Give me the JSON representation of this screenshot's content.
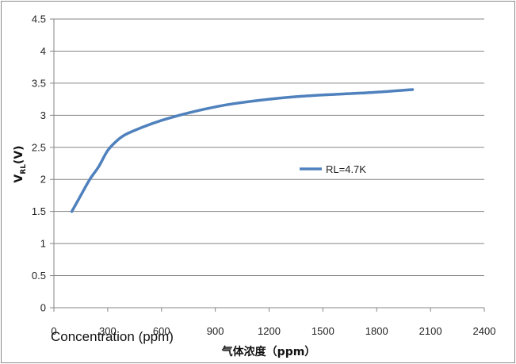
{
  "chart_data": {
    "type": "line",
    "title": "",
    "xlabel": "气体浓度（ppm）",
    "ylabel": "VRL(V)",
    "ylabel_main": "V",
    "ylabel_sub": "RL",
    "ylabel_tail": "(V)",
    "overlay_text": "Concentration (ppm)",
    "xlim": [
      0,
      2400
    ],
    "ylim": [
      0,
      4.5
    ],
    "x_ticks": [
      0,
      300,
      600,
      900,
      1200,
      1500,
      1800,
      2100,
      2400
    ],
    "x_tick_labels": [
      "0",
      "300",
      "600",
      "900",
      "1200",
      "1500",
      "1800",
      "2100",
      "2400"
    ],
    "y_ticks": [
      0,
      0.5,
      1,
      1.5,
      2,
      2.5,
      3,
      3.5,
      4,
      4.5
    ],
    "y_tick_labels": [
      "0",
      "0.5",
      "1",
      "1.5",
      "2",
      "2.5",
      "3",
      "3.5",
      "4",
      "4.5"
    ],
    "grid": true,
    "legend_position": "right-middle",
    "series": [
      {
        "name": "RL=4.7K",
        "color": "#4f81bd",
        "points": [
          [
            100,
            1.5
          ],
          [
            150,
            1.75
          ],
          [
            200,
            2.0
          ],
          [
            250,
            2.2
          ],
          [
            300,
            2.45
          ],
          [
            350,
            2.6
          ],
          [
            400,
            2.7
          ],
          [
            500,
            2.82
          ],
          [
            600,
            2.92
          ],
          [
            700,
            3.0
          ],
          [
            800,
            3.07
          ],
          [
            900,
            3.13
          ],
          [
            1000,
            3.18
          ],
          [
            1200,
            3.25
          ],
          [
            1400,
            3.3
          ],
          [
            1600,
            3.33
          ],
          [
            1800,
            3.36
          ],
          [
            2000,
            3.4
          ]
        ]
      }
    ]
  }
}
